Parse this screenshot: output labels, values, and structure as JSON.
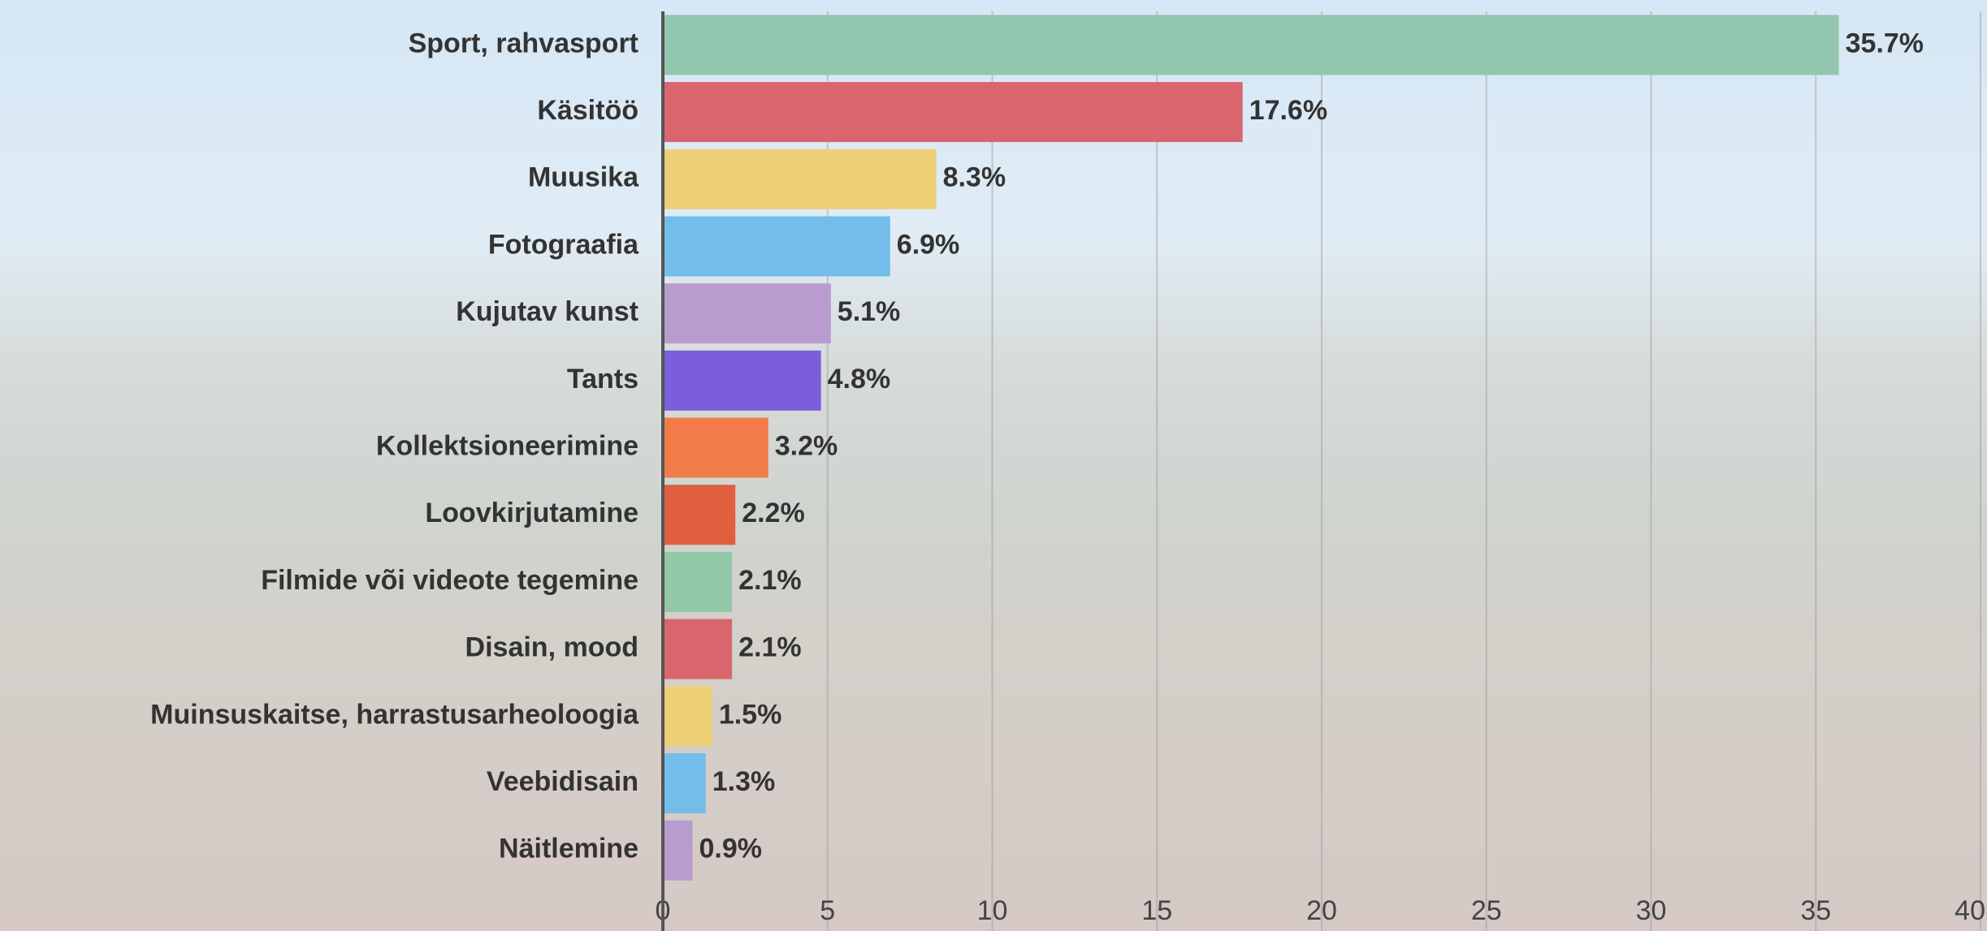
{
  "chart_data": {
    "type": "barh",
    "categories": [
      "Sport, rahvasport",
      "Käsitöö",
      "Muusika",
      "Fotograafia",
      "Kujutav kunst",
      "Tants",
      "Kollektsioneerimine",
      "Loovkirjutamine",
      "Filmide või videote tegemine",
      "Disain, mood",
      "Muinsuskaitse, harrastusarheoloogia",
      "Veebidisain",
      "Näitlemine"
    ],
    "values": [
      35.7,
      17.6,
      8.3,
      6.9,
      5.1,
      4.8,
      3.2,
      2.2,
      2.1,
      2.1,
      1.5,
      1.3,
      0.9
    ],
    "value_labels": [
      "35.7%",
      "17.6%",
      "8.3%",
      "6.9%",
      "5.1%",
      "4.8%",
      "3.2%",
      "2.2%",
      "2.1%",
      "2.1%",
      "1.5%",
      "1.3%",
      "0.9%"
    ],
    "colors": [
      "#93c6ae",
      "#da666d",
      "#eecf78",
      "#72bde9",
      "#b89cd0",
      "#7b5edb",
      "#f27c49",
      "#e05f3e",
      "#92c7a8",
      "#da666d",
      "#eecf78",
      "#72bde9",
      "#b89cd0"
    ],
    "xlim": [
      0,
      40
    ],
    "xticks": [
      0,
      5,
      10,
      15,
      20,
      25,
      30,
      35,
      40
    ],
    "grid": true
  }
}
